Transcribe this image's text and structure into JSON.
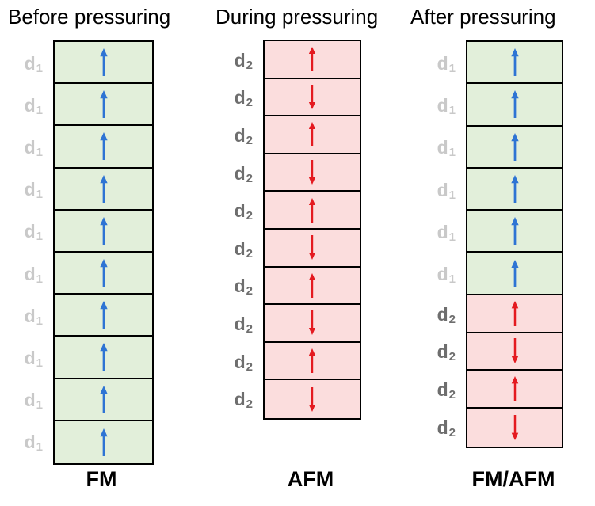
{
  "figure": {
    "columns": [
      {
        "title": "Before pressuring",
        "bottom_label": "FM",
        "layers": [
          {
            "label": "d",
            "sub": "1",
            "arrow": "up",
            "phase": "fm"
          },
          {
            "label": "d",
            "sub": "1",
            "arrow": "up",
            "phase": "fm"
          },
          {
            "label": "d",
            "sub": "1",
            "arrow": "up",
            "phase": "fm"
          },
          {
            "label": "d",
            "sub": "1",
            "arrow": "up",
            "phase": "fm"
          },
          {
            "label": "d",
            "sub": "1",
            "arrow": "up",
            "phase": "fm"
          },
          {
            "label": "d",
            "sub": "1",
            "arrow": "up",
            "phase": "fm"
          },
          {
            "label": "d",
            "sub": "1",
            "arrow": "up",
            "phase": "fm"
          },
          {
            "label": "d",
            "sub": "1",
            "arrow": "up",
            "phase": "fm"
          },
          {
            "label": "d",
            "sub": "1",
            "arrow": "up",
            "phase": "fm"
          },
          {
            "label": "d",
            "sub": "1",
            "arrow": "up",
            "phase": "fm"
          }
        ]
      },
      {
        "title": "During pressuring",
        "bottom_label": "AFM",
        "layers": [
          {
            "label": "d",
            "sub": "2",
            "arrow": "up",
            "phase": "afm"
          },
          {
            "label": "d",
            "sub": "2",
            "arrow": "down",
            "phase": "afm"
          },
          {
            "label": "d",
            "sub": "2",
            "arrow": "up",
            "phase": "afm"
          },
          {
            "label": "d",
            "sub": "2",
            "arrow": "down",
            "phase": "afm"
          },
          {
            "label": "d",
            "sub": "2",
            "arrow": "up",
            "phase": "afm"
          },
          {
            "label": "d",
            "sub": "2",
            "arrow": "down",
            "phase": "afm"
          },
          {
            "label": "d",
            "sub": "2",
            "arrow": "up",
            "phase": "afm"
          },
          {
            "label": "d",
            "sub": "2",
            "arrow": "down",
            "phase": "afm"
          },
          {
            "label": "d",
            "sub": "2",
            "arrow": "up",
            "phase": "afm"
          },
          {
            "label": "d",
            "sub": "2",
            "arrow": "down",
            "phase": "afm"
          }
        ]
      },
      {
        "title": "After pressuring",
        "bottom_label": "FM/AFM",
        "layers": [
          {
            "label": "d",
            "sub": "1",
            "arrow": "up",
            "phase": "fm"
          },
          {
            "label": "d",
            "sub": "1",
            "arrow": "up",
            "phase": "fm"
          },
          {
            "label": "d",
            "sub": "1",
            "arrow": "up",
            "phase": "fm"
          },
          {
            "label": "d",
            "sub": "1",
            "arrow": "up",
            "phase": "fm"
          },
          {
            "label": "d",
            "sub": "1",
            "arrow": "up",
            "phase": "fm"
          },
          {
            "label": "d",
            "sub": "1",
            "arrow": "up",
            "phase": "fm"
          },
          {
            "label": "d",
            "sub": "2",
            "arrow": "up",
            "phase": "afm"
          },
          {
            "label": "d",
            "sub": "2",
            "arrow": "down",
            "phase": "afm"
          },
          {
            "label": "d",
            "sub": "2",
            "arrow": "up",
            "phase": "afm"
          },
          {
            "label": "d",
            "sub": "2",
            "arrow": "down",
            "phase": "afm"
          }
        ]
      }
    ]
  },
  "colors": {
    "background": "#ffffff",
    "fm_fill": "#e2efda",
    "afm_fill": "#fbdddd",
    "fm_arrow": "#2e74d4",
    "afm_arrow": "#e41a20",
    "d1_label_color": "#c9c9c9",
    "d2_label_color": "#6e6e6e",
    "box_border": "#000000",
    "title_color": "#000000"
  }
}
